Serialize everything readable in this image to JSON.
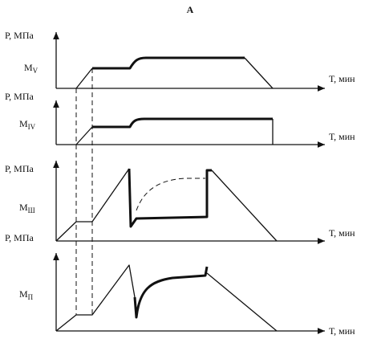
{
  "title": "А",
  "panels": [
    {
      "y_label": "Р, МПа",
      "x_label": "Т, мин",
      "curve_label": {
        "main": "M",
        "sub": "V"
      }
    },
    {
      "y_label": "Р, МПа",
      "x_label": "Т, мин",
      "curve_label": {
        "main": "M",
        "sub": "IV"
      }
    },
    {
      "y_label": "Р, МПа",
      "x_label": "Т, мин",
      "curve_label": {
        "main": "M",
        "sub": "Ш"
      }
    },
    {
      "y_label": "Р, МПа",
      "x_label": "Т, мин",
      "curve_label": {
        "main": "M",
        "sub": "П"
      }
    }
  ]
}
